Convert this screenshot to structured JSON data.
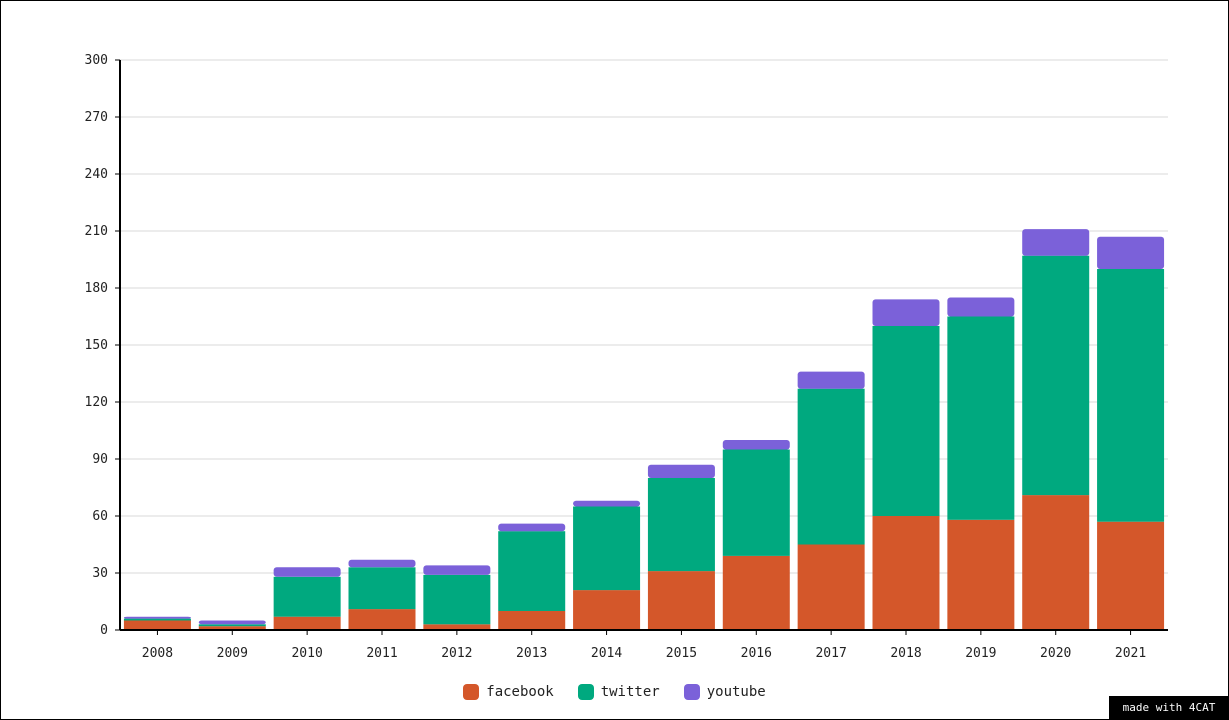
{
  "chart_data": {
    "type": "bar",
    "stacked": true,
    "categories": [
      "2008",
      "2009",
      "2010",
      "2011",
      "2012",
      "2013",
      "2014",
      "2015",
      "2016",
      "2017",
      "2018",
      "2019",
      "2020",
      "2021"
    ],
    "series": [
      {
        "name": "facebook",
        "color": "#d4572a",
        "values": [
          5,
          2,
          7,
          11,
          3,
          10,
          21,
          31,
          39,
          45,
          60,
          58,
          71,
          57
        ]
      },
      {
        "name": "twitter",
        "color": "#00a97f",
        "values": [
          1,
          1,
          21,
          22,
          26,
          42,
          44,
          49,
          56,
          82,
          100,
          107,
          126,
          133
        ]
      },
      {
        "name": "youtube",
        "color": "#7b61d9",
        "values": [
          1,
          2,
          5,
          4,
          5,
          4,
          3,
          7,
          5,
          9,
          14,
          10,
          14,
          17
        ]
      }
    ],
    "ylim": [
      0,
      300
    ],
    "yticks": [
      "0",
      "30",
      "60",
      "90",
      "120",
      "150",
      "180",
      "210",
      "240",
      "270",
      "300"
    ],
    "grid": true,
    "legend_position": "bottom-center",
    "title": "",
    "xlabel": "",
    "ylabel": ""
  },
  "footer": {
    "credit": "made with 4CAT"
  }
}
